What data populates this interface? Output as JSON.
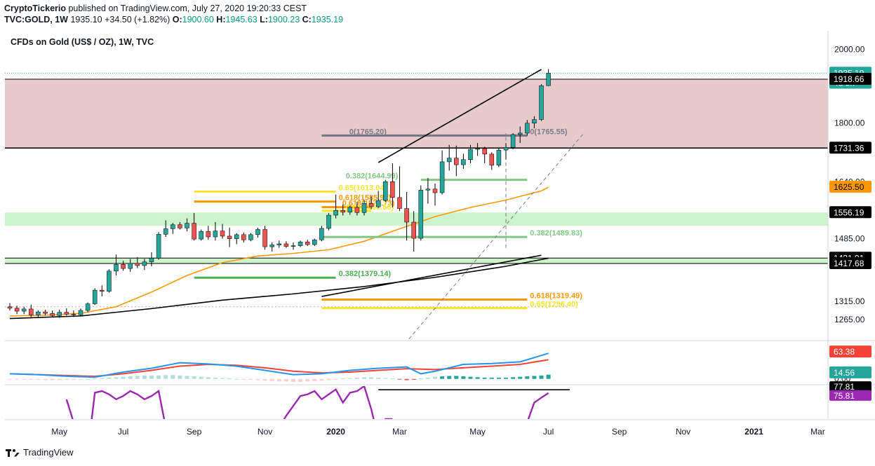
{
  "header": {
    "author": "CryptoTickerio",
    "published": "published on TradingView.com, July 27, 2020 19:20:33 CEST",
    "symbol": "TVC:GOLD, 1W",
    "last": "1935.10",
    "change": "+34.50 (+1.82%)",
    "o_label": "O:",
    "o": "1900.60",
    "h_label": "H:",
    "h": "1945.63",
    "l_label": "L:",
    "l": "1900.23",
    "c_label": "C:",
    "c": "1935.19"
  },
  "footer": {
    "brand": "TradingView"
  },
  "chart_data": {
    "type": "candlestick",
    "title": "CFDs on Gold (US$ / OZ), 1W, TVC",
    "y_range": [
      1210,
      2050
    ],
    "y_ticks": [
      2000.0,
      1800.0,
      1640.0,
      1485.0,
      1315.0,
      1265.0
    ],
    "x_labels": [
      "May",
      "Jul",
      "Sep",
      "Nov",
      "2020",
      "Mar",
      "May",
      "Jul",
      "Sep",
      "Nov",
      "2021",
      "Mar"
    ],
    "x_label_bold": [
      "2020",
      "2021"
    ],
    "colors": {
      "up": "#26a69a",
      "down": "#ef5350",
      "resistance_zone": "#e6c4c7",
      "support_zone": "#c8f2c8",
      "ma_fast": "#ff9800",
      "ma_slow": "#000000"
    },
    "candles": [
      [
        1300,
        1310,
        1290,
        1296
      ],
      [
        1296,
        1303,
        1280,
        1288
      ],
      [
        1288,
        1300,
        1280,
        1294
      ],
      [
        1294,
        1306,
        1272,
        1278
      ],
      [
        1278,
        1290,
        1270,
        1286
      ],
      [
        1286,
        1292,
        1276,
        1282
      ],
      [
        1282,
        1290,
        1272,
        1276
      ],
      [
        1276,
        1292,
        1270,
        1285
      ],
      [
        1285,
        1296,
        1276,
        1280
      ],
      [
        1280,
        1290,
        1272,
        1278
      ],
      [
        1278,
        1295,
        1275,
        1290
      ],
      [
        1290,
        1312,
        1285,
        1308
      ],
      [
        1308,
        1350,
        1305,
        1345
      ],
      [
        1345,
        1358,
        1328,
        1342
      ],
      [
        1342,
        1402,
        1338,
        1397
      ],
      [
        1397,
        1442,
        1385,
        1415
      ],
      [
        1415,
        1425,
        1398,
        1404
      ],
      [
        1404,
        1430,
        1395,
        1418
      ],
      [
        1418,
        1435,
        1405,
        1412
      ],
      [
        1412,
        1430,
        1400,
        1422
      ],
      [
        1422,
        1448,
        1410,
        1432
      ],
      [
        1432,
        1503,
        1428,
        1497
      ],
      [
        1497,
        1535,
        1490,
        1512
      ],
      [
        1512,
        1528,
        1498,
        1523
      ],
      [
        1523,
        1530,
        1510,
        1514
      ],
      [
        1514,
        1540,
        1505,
        1527
      ],
      [
        1527,
        1555,
        1480,
        1484
      ],
      [
        1484,
        1510,
        1480,
        1505
      ],
      [
        1505,
        1520,
        1482,
        1490
      ],
      [
        1490,
        1530,
        1480,
        1506
      ],
      [
        1506,
        1525,
        1485,
        1492
      ],
      [
        1492,
        1515,
        1462,
        1485
      ],
      [
        1485,
        1500,
        1470,
        1496
      ],
      [
        1496,
        1502,
        1475,
        1482
      ],
      [
        1482,
        1500,
        1478,
        1496
      ],
      [
        1496,
        1515,
        1488,
        1510
      ],
      [
        1510,
        1520,
        1455,
        1463
      ],
      [
        1463,
        1475,
        1450,
        1468
      ],
      [
        1468,
        1480,
        1460,
        1471
      ],
      [
        1471,
        1478,
        1460,
        1464
      ],
      [
        1464,
        1475,
        1455,
        1466
      ],
      [
        1466,
        1480,
        1462,
        1476
      ],
      [
        1476,
        1482,
        1465,
        1469
      ],
      [
        1469,
        1485,
        1465,
        1482
      ],
      [
        1482,
        1520,
        1478,
        1513
      ],
      [
        1513,
        1555,
        1508,
        1549
      ],
      [
        1549,
        1605,
        1540,
        1562
      ],
      [
        1562,
        1578,
        1548,
        1557
      ],
      [
        1557,
        1575,
        1550,
        1570
      ],
      [
        1570,
        1585,
        1548,
        1556
      ],
      [
        1556,
        1590,
        1548,
        1581
      ],
      [
        1581,
        1600,
        1565,
        1572
      ],
      [
        1572,
        1615,
        1568,
        1589
      ],
      [
        1589,
        1645,
        1585,
        1640
      ],
      [
        1640,
        1690,
        1570,
        1597
      ],
      [
        1597,
        1682,
        1560,
        1567
      ],
      [
        1567,
        1612,
        1480,
        1530
      ],
      [
        1530,
        1560,
        1450,
        1486
      ],
      [
        1486,
        1630,
        1480,
        1617
      ],
      [
        1617,
        1650,
        1580,
        1620
      ],
      [
        1620,
        1635,
        1575,
        1610
      ],
      [
        1610,
        1725,
        1605,
        1694
      ],
      [
        1694,
        1740,
        1670,
        1704
      ],
      [
        1704,
        1738,
        1655,
        1686
      ],
      [
        1686,
        1716,
        1675,
        1700
      ],
      [
        1700,
        1740,
        1690,
        1728
      ],
      [
        1728,
        1745,
        1710,
        1730
      ],
      [
        1730,
        1735,
        1690,
        1715
      ],
      [
        1715,
        1720,
        1672,
        1685
      ],
      [
        1685,
        1730,
        1680,
        1726
      ],
      [
        1726,
        1745,
        1700,
        1733
      ],
      [
        1733,
        1772,
        1728,
        1768
      ],
      [
        1768,
        1790,
        1745,
        1772
      ],
      [
        1772,
        1808,
        1765,
        1799
      ],
      [
        1799,
        1818,
        1785,
        1809
      ],
      [
        1809,
        1905,
        1805,
        1901
      ],
      [
        1901,
        1946,
        1900,
        1935
      ]
    ],
    "ma_fast": {
      "t": [
        0,
        5,
        10,
        15,
        20,
        25,
        30,
        35,
        40,
        45,
        50,
        55,
        60,
        65,
        70,
        75,
        76
      ],
      "v": [
        1275,
        1277,
        1282,
        1300,
        1340,
        1385,
        1420,
        1438,
        1445,
        1455,
        1478,
        1512,
        1545,
        1570,
        1590,
        1615,
        1625
      ]
    },
    "ma_slow": {
      "t": [
        0,
        10,
        20,
        30,
        40,
        50,
        60,
        70,
        76
      ],
      "v": [
        1268,
        1275,
        1295,
        1318,
        1335,
        1355,
        1380,
        1410,
        1432
      ]
    },
    "zones": [
      {
        "kind": "resistance",
        "from": 1731.36,
        "to": 1918.66
      },
      {
        "kind": "support",
        "from": 1520,
        "to": 1556.19
      },
      {
        "kind": "support",
        "from": 1417.68,
        "to": 1432.39
      }
    ],
    "hlines": [
      {
        "t0": 0,
        "t1": 76,
        "v": 1918.66,
        "color": "#000000",
        "w": 1
      },
      {
        "t0": 0,
        "t1": 76,
        "v": 1731.36,
        "color": "#000000",
        "w": 1.5
      },
      {
        "t0": 0,
        "t1": 76,
        "v": 1432.39,
        "color": "#000000",
        "w": 1
      },
      {
        "t0": 0,
        "t1": 76,
        "v": 1417.68,
        "color": "#000000",
        "w": 1
      }
    ],
    "fib_levels": [
      {
        "t0": 58,
        "t1": 73,
        "v": 1644.99,
        "color": "#81c784",
        "label": "0.382(1644.99)",
        "lt": 47
      },
      {
        "t0": 26,
        "t1": 46,
        "v": 1613.04,
        "color": "#f5e52c",
        "label": "0.65(1613.04)",
        "lt": 46
      },
      {
        "t0": 26,
        "t1": 46,
        "v": 1585.91,
        "color": "#ff9800",
        "label": "0.618(1585.91)",
        "lt": 46
      },
      {
        "t0": 44,
        "t1": 51,
        "v": 1570.73,
        "color": "#ff9800",
        "label": "0.618(1570.73)",
        "lt": 46.5
      },
      {
        "t0": 44,
        "t1": 51,
        "v": 1560.66,
        "color": "#f5e52c",
        "label": "0.65(1560.66)",
        "lt": 47
      },
      {
        "t0": 44,
        "t1": 73,
        "v": 1489.83,
        "color": "#81c784",
        "label": "0.382(1489.83)",
        "lt": 73
      },
      {
        "t0": 26,
        "t1": 46,
        "v": 1379.14,
        "color": "#4caf50",
        "label": "0.382(1379.14)",
        "lt": 46
      },
      {
        "t0": 44,
        "t1": 73,
        "v": 1319.49,
        "color": "#ff9800",
        "label": "0.618(1319.49)",
        "lt": 73
      },
      {
        "t0": 44,
        "t1": 73,
        "v": 1296.4,
        "color": "#f5e52c",
        "label": "0.65(1296.40)",
        "lt": 73
      },
      {
        "t0": 44,
        "t1": 73,
        "v": 1765.55,
        "color": "#787b86",
        "label": "0(1765.55)",
        "lt": 73
      },
      {
        "t0": 44,
        "t1": 73,
        "v": 1765.2,
        "color": "#787b86",
        "label": "0(1765.20)",
        "lt": 47.5
      }
    ],
    "trendlines": [
      {
        "t0": 52,
        "v0": 1692,
        "t1": 75,
        "v1": 1945,
        "color": "#000000",
        "w": 1.6,
        "dash": false
      },
      {
        "t0": 44,
        "v0": 1328,
        "t1": 75,
        "v1": 1440,
        "color": "#000000",
        "w": 1.6,
        "dash": false
      },
      {
        "t0": 54,
        "v0": 1160,
        "t1": 81,
        "v1": 1772,
        "color": "#787b86",
        "w": 1,
        "dash": true
      },
      {
        "t0": 70,
        "v0": 1460,
        "t1": 70,
        "v1": 1772,
        "color": "#787b86",
        "w": 1,
        "dash": true
      }
    ],
    "price_labels": [
      {
        "v": 1935.19,
        "text": "1935.19",
        "bg": "#26a69a",
        "fg": "#ffffff"
      },
      {
        "v": 1908,
        "text": "4d 5h",
        "bg": "#26a69a",
        "fg": "#ffffff"
      },
      {
        "v": 1918.66,
        "text": "1918.66",
        "bg": "#000000",
        "fg": "#ffffff"
      },
      {
        "v": 1731.36,
        "text": "1731.36",
        "bg": "#000000",
        "fg": "#ffffff"
      },
      {
        "v": 1625.5,
        "text": "1625.50",
        "bg": "#ff9800",
        "fg": "#000000"
      },
      {
        "v": 1556.19,
        "text": "1556.19",
        "bg": "#000000",
        "fg": "#ffffff"
      },
      {
        "v": 1432.39,
        "text": "1432.39",
        "bg": "#000000",
        "fg": "#ffffff"
      },
      {
        "v": 1431.91,
        "text": "1431.91",
        "bg": "#000000",
        "fg": "#ffffff"
      },
      {
        "v": 1417.68,
        "text": "1417.68",
        "bg": "#000000",
        "fg": "#ffffff"
      }
    ],
    "macd": {
      "range": [
        -12,
        85
      ],
      "ticks": [
        {
          "v": 0,
          "label": "0.00"
        }
      ],
      "macd_line": {
        "t": [
          0,
          4,
          8,
          12,
          16,
          20,
          24,
          28,
          32,
          36,
          40,
          44,
          48,
          52,
          56,
          58,
          60,
          64,
          68,
          72,
          76
        ],
        "v": [
          12,
          10,
          6,
          4,
          16,
          25,
          38,
          35,
          30,
          20,
          10,
          12,
          20,
          25,
          28,
          12,
          18,
          34,
          36,
          40,
          60
        ],
        "color": "#2196f3"
      },
      "signal_line": {
        "t": [
          0,
          4,
          8,
          12,
          16,
          20,
          24,
          28,
          32,
          36,
          40,
          44,
          48,
          52,
          56,
          60,
          64,
          68,
          72,
          76
        ],
        "v": [
          12,
          10,
          8,
          6,
          12,
          20,
          30,
          34,
          32,
          26,
          18,
          14,
          16,
          20,
          24,
          22,
          26,
          30,
          34,
          45
        ],
        "color": "#f44336"
      },
      "hist": [
        -1,
        -1,
        -2,
        -2,
        -2,
        -2,
        -3,
        -3,
        -2,
        -2,
        -1,
        0,
        1,
        2,
        3,
        4,
        5,
        6,
        7,
        8,
        8,
        8,
        9,
        9,
        8,
        7,
        6,
        5,
        4,
        3,
        2,
        1,
        0,
        -1,
        -2,
        -3,
        -4,
        -5,
        -6,
        -6,
        -7,
        -7,
        -6,
        -5,
        -4,
        -3,
        -2,
        1,
        2,
        3,
        4,
        4,
        3,
        2,
        1,
        -1,
        -3,
        -2,
        1,
        3,
        5,
        6,
        7,
        7,
        6,
        5,
        4,
        3,
        3,
        3,
        3,
        4,
        5,
        6,
        7,
        8,
        10
      ],
      "labels": [
        {
          "v": 63.38,
          "text": "63.38",
          "bg": "#f44336",
          "fg": "#ffffff"
        },
        {
          "v": 14.56,
          "text": "14.56",
          "bg": "#26a69a",
          "fg": "#ffffff"
        }
      ]
    },
    "rsi": {
      "range": [
        60,
        80
      ],
      "line": {
        "t": [
          8,
          9,
          10,
          11,
          12,
          13,
          14,
          15,
          16,
          17,
          18,
          19,
          20,
          21,
          22,
          32,
          33,
          34,
          35,
          36,
          37,
          38,
          39,
          40,
          41,
          42,
          43,
          44,
          45,
          46,
          47,
          48,
          49,
          50,
          51,
          52,
          53,
          54,
          72,
          73,
          74,
          75,
          76
        ],
        "v": [
          72,
          58,
          55,
          40,
          76,
          77,
          75,
          72,
          74,
          77,
          75,
          72,
          74,
          77,
          55,
          40,
          55,
          50,
          55,
          45,
          50,
          55,
          62,
          68,
          74,
          75,
          77,
          72,
          75,
          78,
          70,
          76,
          77,
          80,
          66,
          48,
          60,
          60,
          55,
          58,
          70,
          73,
          75.81
        ],
        "color": "#9c27b0"
      },
      "hline": {
        "t0": 52,
        "t1": 79,
        "v": 77.81,
        "color": "#000000"
      },
      "labels": [
        {
          "v": 77.81,
          "text": "77.81",
          "bg": "#000000",
          "fg": "#ffffff"
        },
        {
          "v": 75.81,
          "text": "75.81",
          "bg": "#9c27b0",
          "fg": "#ffffff"
        }
      ]
    }
  }
}
